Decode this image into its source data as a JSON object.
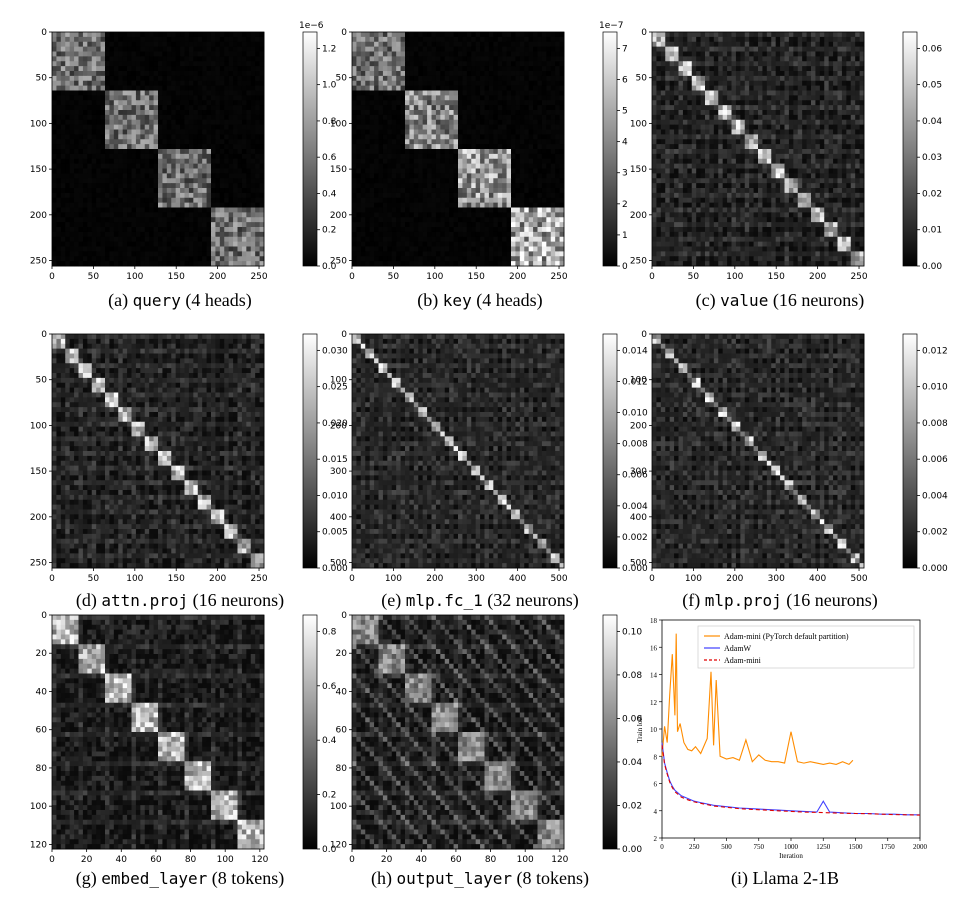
{
  "panels": [
    {
      "id": "a",
      "caption_prefix": "(a)",
      "caption_code": "query",
      "caption_suffix": "(4 heads)",
      "mode": "block4",
      "x_ticks": [
        "0",
        "50",
        "100",
        "150",
        "200",
        "250"
      ],
      "y_ticks": [
        "0",
        "50",
        "100",
        "150",
        "200",
        "250"
      ],
      "cbar_ticks": [
        "0.0",
        "0.2",
        "0.4",
        "0.6",
        "0.8",
        "1.0",
        "1.2"
      ],
      "cbar_exponent": "1e−6"
    },
    {
      "id": "b",
      "caption_prefix": "(b)",
      "caption_code": "key",
      "caption_suffix": "(4 heads)",
      "mode": "block4key",
      "x_ticks": [
        "0",
        "50",
        "100",
        "150",
        "200",
        "250"
      ],
      "y_ticks": [
        "0",
        "50",
        "100",
        "150",
        "200",
        "250"
      ],
      "cbar_ticks": [
        "0",
        "1",
        "2",
        "3",
        "4",
        "5",
        "6",
        "7"
      ],
      "cbar_exponent": "1e−7"
    },
    {
      "id": "c",
      "caption_prefix": "(c)",
      "caption_code": "value",
      "caption_suffix": "(16 neurons)",
      "mode": "diag16",
      "x_ticks": [
        "0",
        "50",
        "100",
        "150",
        "200",
        "250"
      ],
      "y_ticks": [
        "0",
        "50",
        "100",
        "150",
        "200",
        "250"
      ],
      "cbar_ticks": [
        "0.00",
        "0.01",
        "0.02",
        "0.03",
        "0.04",
        "0.05",
        "0.06"
      ],
      "cbar_exponent": ""
    },
    {
      "id": "d",
      "caption_prefix": "(d)",
      "caption_code": "attn.proj",
      "caption_suffix": "(16 neurons)",
      "mode": "diag16",
      "x_ticks": [
        "0",
        "50",
        "100",
        "150",
        "200",
        "250"
      ],
      "y_ticks": [
        "0",
        "50",
        "100",
        "150",
        "200",
        "250"
      ],
      "cbar_ticks": [
        "0.000",
        "0.005",
        "0.010",
        "0.015",
        "0.020",
        "0.025",
        "0.030"
      ],
      "cbar_exponent": ""
    },
    {
      "id": "e",
      "caption_prefix": "(e)",
      "caption_code": "mlp.fc_1",
      "caption_suffix": "(32 neurons)",
      "mode": "diag32",
      "x_ticks": [
        "0",
        "100",
        "200",
        "300",
        "400",
        "500"
      ],
      "y_ticks": [
        "0",
        "100",
        "200",
        "300",
        "400",
        "500"
      ],
      "cbar_ticks": [
        "0.000",
        "0.002",
        "0.004",
        "0.006",
        "0.008",
        "0.010",
        "0.012",
        "0.014"
      ],
      "cbar_exponent": ""
    },
    {
      "id": "f",
      "caption_prefix": "(f)",
      "caption_code": "mlp.proj",
      "caption_suffix": "(16 neurons)",
      "mode": "diag32",
      "x_ticks": [
        "0",
        "100",
        "200",
        "300",
        "400",
        "500"
      ],
      "y_ticks": [
        "0",
        "100",
        "200",
        "300",
        "400",
        "500"
      ],
      "cbar_ticks": [
        "0.000",
        "0.002",
        "0.004",
        "0.006",
        "0.008",
        "0.010",
        "0.012"
      ],
      "cbar_exponent": ""
    },
    {
      "id": "g",
      "caption_prefix": "(g)",
      "caption_code": "embed_layer",
      "caption_suffix": "(8 tokens)",
      "mode": "diag8",
      "x_ticks": [
        "0",
        "20",
        "40",
        "60",
        "80",
        "100",
        "120"
      ],
      "y_ticks": [
        "0",
        "20",
        "40",
        "60",
        "80",
        "100",
        "120"
      ],
      "cbar_ticks": [
        "0.0",
        "0.2",
        "0.4",
        "0.6",
        "0.8"
      ],
      "cbar_exponent": ""
    },
    {
      "id": "h",
      "caption_prefix": "(h)",
      "caption_code": "output_layer",
      "caption_suffix": "(8 tokens)",
      "mode": "diag8b",
      "x_ticks": [
        "0",
        "20",
        "40",
        "60",
        "80",
        "100",
        "120"
      ],
      "y_ticks": [
        "0",
        "20",
        "40",
        "60",
        "80",
        "100",
        "120"
      ],
      "cbar_ticks": [
        "0.00",
        "0.02",
        "0.04",
        "0.06",
        "0.08",
        "0.10"
      ],
      "cbar_exponent": ""
    }
  ],
  "line_panel": {
    "caption_prefix": "(i)",
    "caption_text": "Llama 2-1B",
    "chart_data": {
      "type": "line",
      "xlabel": "Iteration",
      "ylabel": "Train loss",
      "xlim": [
        0,
        2000
      ],
      "ylim": [
        2,
        18
      ],
      "x_ticks": [
        "0",
        "250",
        "500",
        "750",
        "1000",
        "1250",
        "1500",
        "1750",
        "2000"
      ],
      "y_ticks": [
        "2",
        "4",
        "6",
        "8",
        "10",
        "12",
        "14",
        "16",
        "18"
      ],
      "series": [
        {
          "name": "Adam-mini (PyTorch default partition)",
          "color": "#ff8c00",
          "dash": "",
          "x": [
            0,
            20,
            40,
            60,
            80,
            100,
            110,
            120,
            140,
            170,
            200,
            230,
            260,
            300,
            350,
            380,
            400,
            420,
            450,
            500,
            550,
            600,
            650,
            700,
            750,
            800,
            850,
            900,
            950,
            1000,
            1050,
            1100,
            1150,
            1200,
            1250,
            1300,
            1350,
            1400,
            1450,
            1480
          ],
          "y": [
            8.0,
            10.2,
            9.0,
            12.5,
            15.5,
            11.0,
            17.0,
            9.8,
            10.4,
            9.0,
            8.5,
            8.4,
            8.7,
            8.2,
            9.3,
            14.2,
            8.8,
            13.6,
            8.0,
            7.8,
            7.9,
            7.7,
            9.2,
            7.6,
            8.1,
            7.7,
            7.6,
            7.6,
            7.5,
            9.8,
            7.6,
            7.5,
            7.6,
            7.5,
            7.4,
            7.5,
            7.4,
            7.6,
            7.4,
            7.7
          ]
        },
        {
          "name": "AdamW",
          "color": "#4040ff",
          "dash": "",
          "x": [
            0,
            20,
            40,
            60,
            80,
            100,
            150,
            200,
            250,
            300,
            400,
            500,
            600,
            700,
            800,
            900,
            1000,
            1100,
            1200,
            1250,
            1300,
            1400,
            1500,
            1600,
            1700,
            1800,
            1900,
            2000
          ],
          "y": [
            9.0,
            7.5,
            6.8,
            6.2,
            5.8,
            5.5,
            5.1,
            4.9,
            4.7,
            4.6,
            4.4,
            4.3,
            4.2,
            4.15,
            4.1,
            4.05,
            4.0,
            3.95,
            3.9,
            4.7,
            3.9,
            3.85,
            3.8,
            3.8,
            3.75,
            3.75,
            3.7,
            3.7
          ]
        },
        {
          "name": "Adam-mini",
          "color": "#e00000",
          "dash": "4,3",
          "x": [
            0,
            20,
            40,
            60,
            80,
            100,
            150,
            200,
            250,
            300,
            400,
            500,
            600,
            700,
            800,
            900,
            1000,
            1100,
            1200,
            1300,
            1400,
            1500,
            1600,
            1700,
            1800,
            1900,
            2000
          ],
          "y": [
            8.8,
            7.4,
            6.7,
            6.1,
            5.7,
            5.4,
            5.0,
            4.8,
            4.65,
            4.55,
            4.35,
            4.25,
            4.15,
            4.1,
            4.05,
            4.0,
            3.95,
            3.9,
            3.88,
            3.85,
            3.82,
            3.8,
            3.78,
            3.75,
            3.72,
            3.7,
            3.68
          ]
        }
      ]
    }
  }
}
